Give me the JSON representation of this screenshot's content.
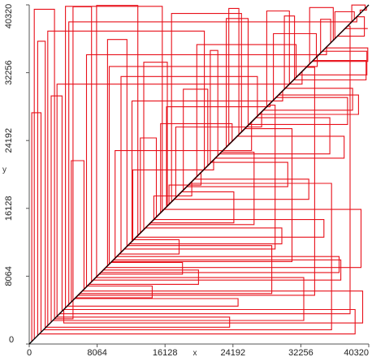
{
  "chart_data": {
    "type": "line",
    "title": "",
    "xlabel": "x",
    "ylabel": "y",
    "xlim": [
      0,
      40320
    ],
    "ylim": [
      0,
      40320
    ],
    "x_ticks": [
      "0",
      "8064",
      "16128",
      "24192",
      "32256",
      "40320"
    ],
    "y_ticks": [
      "0",
      "8064",
      "16128",
      "24192",
      "32256",
      "40320"
    ],
    "grid": false,
    "legend": "none",
    "series": [
      {
        "style": "diagonal",
        "color": "#000000",
        "points": [
          [
            0,
            0
          ],
          [
            40320,
            40320
          ]
        ]
      },
      {
        "style": "step-path",
        "color": "#e8101a",
        "points": [
          [
            600,
            600
          ],
          [
            600,
            39800
          ],
          [
            3000,
            39800
          ],
          [
            3000,
            3000
          ],
          [
            5200,
            3000
          ],
          [
            5200,
            40100
          ],
          [
            7400,
            40100
          ],
          [
            7400,
            7400
          ],
          [
            9300,
            9300
          ],
          [
            9300,
            36200
          ],
          [
            11600,
            36200
          ],
          [
            11600,
            11600
          ],
          [
            13600,
            13600
          ],
          [
            13600,
            33500
          ],
          [
            16400,
            33500
          ],
          [
            16400,
            16400
          ],
          [
            18300,
            18300
          ],
          [
            18300,
            30300
          ],
          [
            21200,
            30300
          ],
          [
            21200,
            21200
          ],
          [
            23400,
            23400
          ],
          [
            23400,
            38700
          ],
          [
            26000,
            38700
          ],
          [
            26000,
            26000
          ],
          [
            28200,
            28200
          ],
          [
            28200,
            39600
          ],
          [
            30900,
            39600
          ],
          [
            30900,
            30900
          ],
          [
            33300,
            33300
          ],
          [
            33300,
            40000
          ],
          [
            36100,
            40000
          ],
          [
            36100,
            36100
          ],
          [
            38300,
            38300
          ],
          [
            38300,
            40300
          ],
          [
            39900,
            40300
          ],
          [
            39900,
            39900
          ]
        ]
      },
      {
        "style": "step-path",
        "color": "#e8101a",
        "points": [
          [
            1200,
            1200
          ],
          [
            38700,
            1200
          ],
          [
            38700,
            4100
          ],
          [
            4100,
            4100
          ],
          [
            4100,
            2500
          ],
          [
            39600,
            2500
          ],
          [
            39600,
            6300
          ],
          [
            6300,
            6300
          ],
          [
            8500,
            8500
          ],
          [
            36800,
            8500
          ],
          [
            36800,
            10400
          ],
          [
            10400,
            10400
          ],
          [
            12700,
            12700
          ],
          [
            35000,
            12700
          ],
          [
            35000,
            14800
          ],
          [
            14800,
            14800
          ],
          [
            17200,
            17200
          ],
          [
            33200,
            17200
          ],
          [
            33200,
            19600
          ],
          [
            19600,
            19600
          ],
          [
            22100,
            22100
          ],
          [
            37400,
            22100
          ],
          [
            37400,
            24700
          ],
          [
            24700,
            24700
          ],
          [
            27300,
            27300
          ],
          [
            39100,
            27300
          ],
          [
            39100,
            29600
          ],
          [
            29600,
            29600
          ],
          [
            32000,
            32000
          ],
          [
            40100,
            32000
          ],
          [
            40100,
            34800
          ],
          [
            34800,
            34800
          ],
          [
            37500,
            37500
          ],
          [
            40200,
            37500
          ]
        ]
      },
      {
        "style": "step-path",
        "color": "#e8101a",
        "points": [
          [
            2200,
            2200
          ],
          [
            2200,
            37200
          ],
          [
            20800,
            37200
          ],
          [
            20800,
            20800
          ],
          [
            10900,
            10900
          ],
          [
            10900,
            31800
          ],
          [
            27100,
            31800
          ],
          [
            27100,
            27100
          ],
          [
            15600,
            15600
          ],
          [
            15600,
            26200
          ],
          [
            24100,
            26200
          ],
          [
            24100,
            24100
          ],
          [
            12200,
            12200
          ],
          [
            12200,
            28900
          ],
          [
            30100,
            28900
          ],
          [
            30100,
            30100
          ],
          [
            6800,
            6800
          ],
          [
            6800,
            34400
          ],
          [
            35300,
            34400
          ],
          [
            35300,
            35300
          ],
          [
            4700,
            4700
          ],
          [
            4700,
            38300
          ],
          [
            38900,
            38300
          ],
          [
            38900,
            38900
          ]
        ]
      },
      {
        "style": "step-path",
        "color": "#e8101a",
        "points": [
          [
            1700,
            1700
          ],
          [
            35900,
            1700
          ],
          [
            35900,
            19100
          ],
          [
            19100,
            19100
          ],
          [
            9800,
            9800
          ],
          [
            31200,
            9800
          ],
          [
            31200,
            25600
          ],
          [
            25600,
            25600
          ],
          [
            14200,
            14200
          ],
          [
            26700,
            14200
          ],
          [
            26700,
            22800
          ],
          [
            22800,
            22800
          ],
          [
            11300,
            11300
          ],
          [
            29200,
            11300
          ],
          [
            29200,
            28400
          ],
          [
            28400,
            28400
          ],
          [
            5800,
            5800
          ],
          [
            33900,
            5800
          ],
          [
            33900,
            32900
          ],
          [
            32900,
            32900
          ],
          [
            3600,
            3600
          ],
          [
            38100,
            3600
          ],
          [
            38100,
            37800
          ],
          [
            37800,
            37800
          ]
        ]
      },
      {
        "style": "step-path",
        "color": "#e8101a",
        "points": [
          [
            8000,
            8000
          ],
          [
            8000,
            40250
          ],
          [
            12900,
            40250
          ],
          [
            12900,
            12900
          ],
          [
            16900,
            16900
          ],
          [
            16900,
            39300
          ],
          [
            25200,
            39300
          ],
          [
            25200,
            25200
          ],
          [
            29000,
            29000
          ],
          [
            29000,
            36900
          ],
          [
            34100,
            36900
          ],
          [
            34100,
            34100
          ],
          [
            13200,
            13200
          ],
          [
            13200,
            24500
          ],
          [
            15100,
            24500
          ],
          [
            15100,
            15100
          ],
          [
            19900,
            19900
          ],
          [
            19900,
            35600
          ],
          [
            31700,
            35600
          ],
          [
            31700,
            31700
          ]
        ]
      },
      {
        "style": "step-path",
        "color": "#e8101a",
        "points": [
          [
            2800,
            2800
          ],
          [
            32600,
            2800
          ],
          [
            32600,
            7900
          ],
          [
            7900,
            7900
          ],
          [
            9100,
            9100
          ],
          [
            39400,
            9100
          ],
          [
            39400,
            16000
          ],
          [
            16000,
            16000
          ],
          [
            18700,
            18700
          ],
          [
            30700,
            18700
          ],
          [
            30700,
            21600
          ],
          [
            21600,
            21600
          ],
          [
            22600,
            22600
          ],
          [
            35700,
            22600
          ],
          [
            35700,
            26900
          ],
          [
            26900,
            26900
          ],
          [
            14400,
            14400
          ],
          [
            24300,
            14400
          ],
          [
            24300,
            18100
          ],
          [
            18100,
            18100
          ],
          [
            6000,
            6000
          ],
          [
            28800,
            6000
          ],
          [
            28800,
            11700
          ],
          [
            11700,
            11700
          ]
        ]
      },
      {
        "style": "step-path",
        "color": "#e8101a",
        "points": [
          [
            14800,
            14800
          ],
          [
            14800,
            17600
          ],
          [
            19300,
            17600
          ],
          [
            19300,
            19300
          ],
          [
            12300,
            12300
          ],
          [
            12300,
            20700
          ],
          [
            21900,
            20700
          ],
          [
            21900,
            21900
          ],
          [
            10200,
            10200
          ],
          [
            10200,
            23000
          ],
          [
            26400,
            23000
          ],
          [
            26400,
            26400
          ],
          [
            16300,
            16300
          ],
          [
            16300,
            28200
          ],
          [
            28600,
            28200
          ],
          [
            28600,
            28600
          ],
          [
            3300,
            3300
          ],
          [
            3300,
            30900
          ],
          [
            32400,
            30900
          ],
          [
            32400,
            32400
          ]
        ]
      },
      {
        "style": "step-path",
        "color": "#e8101a",
        "points": [
          [
            1000,
            1000
          ],
          [
            1000,
            36000
          ],
          [
            1900,
            36000
          ],
          [
            1900,
            1900
          ],
          [
            2600,
            2600
          ],
          [
            2600,
            29500
          ],
          [
            3900,
            29500
          ],
          [
            3900,
            3900
          ],
          [
            5000,
            5000
          ],
          [
            5000,
            21800
          ],
          [
            6500,
            21800
          ],
          [
            6500,
            6500
          ],
          [
            36600,
            36600
          ],
          [
            39800,
            36600
          ],
          [
            39800,
            38900
          ],
          [
            38900,
            38900
          ],
          [
            31400,
            31400
          ],
          [
            40000,
            31400
          ],
          [
            40000,
            33700
          ],
          [
            33700,
            33700
          ],
          [
            27800,
            27800
          ],
          [
            38400,
            27800
          ],
          [
            38400,
            30400
          ],
          [
            30400,
            30400
          ]
        ]
      },
      {
        "style": "step-path",
        "color": "#e8101a",
        "points": [
          [
            4500,
            4500
          ],
          [
            24800,
            4500
          ],
          [
            24800,
            5400
          ],
          [
            5400,
            5400
          ],
          [
            7100,
            7100
          ],
          [
            20100,
            7100
          ],
          [
            20100,
            8800
          ],
          [
            8800,
            8800
          ],
          [
            10700,
            10700
          ],
          [
            17800,
            10700
          ],
          [
            17800,
            12400
          ],
          [
            12400,
            12400
          ],
          [
            23700,
            23700
          ],
          [
            23700,
            39900
          ],
          [
            24900,
            39900
          ],
          [
            24900,
            24900
          ],
          [
            30300,
            30300
          ],
          [
            30300,
            39000
          ],
          [
            31500,
            39000
          ],
          [
            31500,
            31500
          ],
          [
            34600,
            34600
          ],
          [
            34600,
            38600
          ],
          [
            35800,
            38600
          ],
          [
            35800,
            35800
          ]
        ]
      },
      {
        "style": "step-path",
        "color": "#e8101a",
        "points": [
          [
            16600,
            16600
          ],
          [
            16600,
            18900
          ],
          [
            20400,
            18900
          ],
          [
            20400,
            20400
          ],
          [
            17400,
            17400
          ],
          [
            17400,
            25800
          ],
          [
            27600,
            25800
          ],
          [
            27600,
            27600
          ],
          [
            11900,
            11900
          ],
          [
            30000,
            11900
          ],
          [
            30000,
            13800
          ],
          [
            13800,
            13800
          ],
          [
            9500,
            9500
          ],
          [
            9500,
            33000
          ],
          [
            34200,
            33000
          ],
          [
            34200,
            34200
          ],
          [
            7600,
            7600
          ],
          [
            37000,
            7600
          ],
          [
            37000,
            10000
          ],
          [
            10000,
            10000
          ]
        ]
      },
      {
        "style": "step-path",
        "color": "#e8101a",
        "points": [
          [
            300,
            300
          ],
          [
            300,
            27500
          ],
          [
            1400,
            27500
          ],
          [
            1400,
            1400
          ],
          [
            2000,
            2000
          ],
          [
            23800,
            2000
          ],
          [
            23800,
            3200
          ],
          [
            3200,
            3200
          ],
          [
            4300,
            4300
          ],
          [
            4300,
            40150
          ],
          [
            15800,
            40150
          ],
          [
            15800,
            15800
          ],
          [
            21500,
            21500
          ],
          [
            21500,
            34900
          ],
          [
            22400,
            34900
          ],
          [
            22400,
            22400
          ],
          [
            26100,
            26100
          ],
          [
            37800,
            26100
          ],
          [
            37800,
            29300
          ],
          [
            29300,
            29300
          ]
        ]
      },
      {
        "style": "step-path",
        "color": "#e8101a",
        "points": [
          [
            39300,
            39300
          ],
          [
            39300,
            39700
          ],
          [
            40050,
            39700
          ],
          [
            40050,
            40050
          ],
          [
            36300,
            36300
          ],
          [
            36300,
            39500
          ],
          [
            38600,
            39500
          ],
          [
            38600,
            38600
          ],
          [
            33600,
            33600
          ],
          [
            40200,
            33600
          ],
          [
            40200,
            35200
          ],
          [
            35200,
            35200
          ],
          [
            5500,
            5500
          ],
          [
            14600,
            5500
          ],
          [
            14600,
            6900
          ],
          [
            6900,
            6900
          ],
          [
            8300,
            8300
          ],
          [
            18200,
            8300
          ],
          [
            18200,
            9700
          ],
          [
            9700,
            9700
          ]
        ]
      }
    ]
  }
}
